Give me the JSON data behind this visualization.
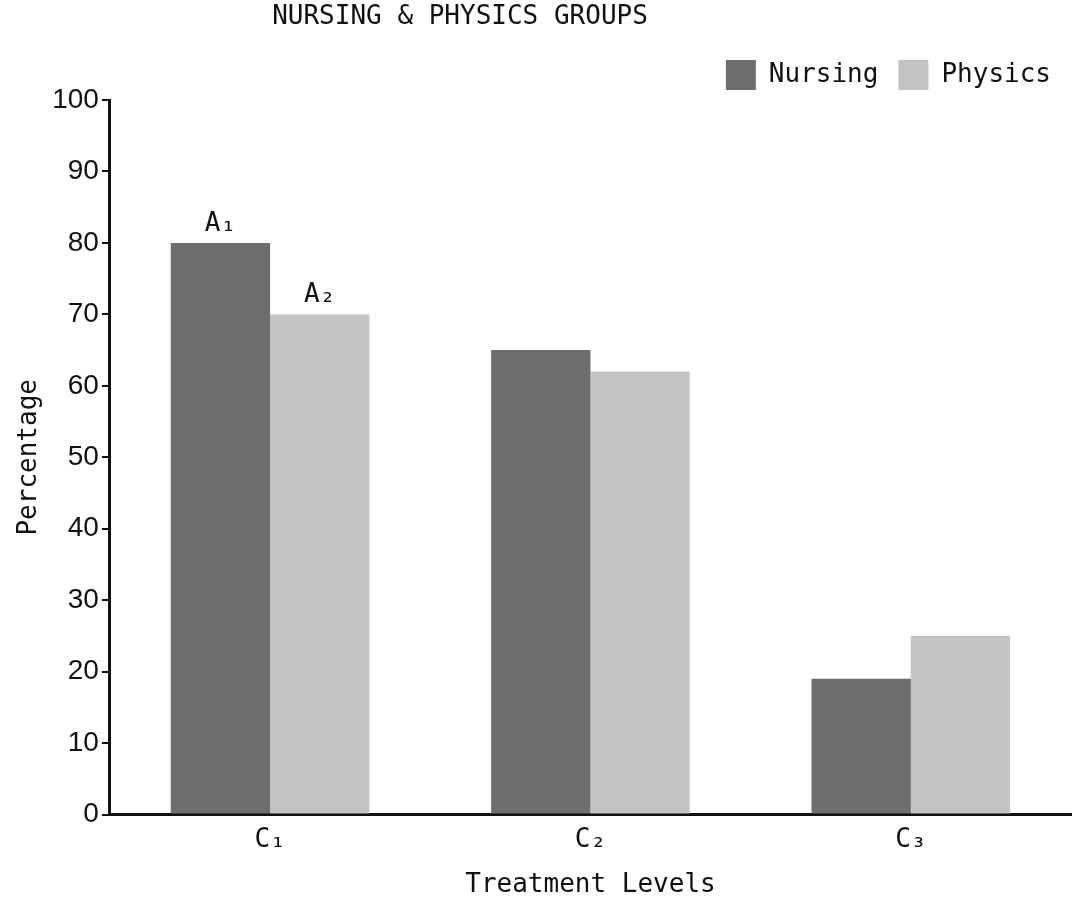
{
  "chart_data": {
    "type": "bar",
    "xlabel": "Treatment Levels",
    "ylabel": "Percentage",
    "categories": [
      "C₁",
      "C₂",
      "C₃"
    ],
    "series": [
      {
        "name": "Nursing",
        "color": "#6e6e6e",
        "values": [
          80,
          65,
          19
        ]
      },
      {
        "name": "Physics",
        "color": "#c4c4c4",
        "values": [
          70,
          62,
          25
        ]
      }
    ],
    "ylim": [
      0,
      100
    ],
    "yticks": [
      0,
      10,
      20,
      30,
      40,
      50,
      60,
      70,
      80,
      90,
      100
    ],
    "grid": false,
    "legend": "top right",
    "annotations": [
      "NURSING & PHYSICS GROUPS",
      {
        "text": "A₁",
        "x": "C₁",
        "y": 80
      },
      {
        "text": "A₂",
        "x": "C₁",
        "y": 70
      }
    ]
  }
}
